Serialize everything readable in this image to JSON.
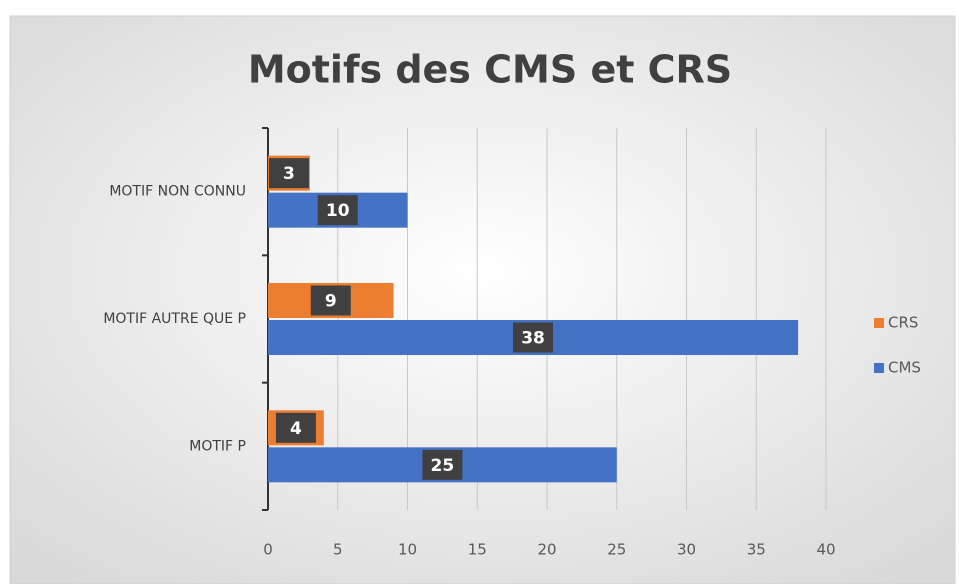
{
  "chart_data": {
    "type": "hbar",
    "title": "Motifs des CMS et CRS",
    "categories": [
      "MOTIF P",
      "MOTIF AUTRE QUE P",
      "MOTIF NON CONNU"
    ],
    "series": [
      {
        "name": "CRS",
        "color": "#ed7d31",
        "values": [
          4,
          9,
          3
        ]
      },
      {
        "name": "CMS",
        "color": "#4472c4",
        "values": [
          25,
          38,
          10
        ]
      }
    ],
    "xlim": [
      0,
      40
    ],
    "xticks": [
      0,
      5,
      10,
      15,
      20,
      25,
      30,
      35,
      40
    ],
    "grid": true,
    "legend": "right"
  }
}
